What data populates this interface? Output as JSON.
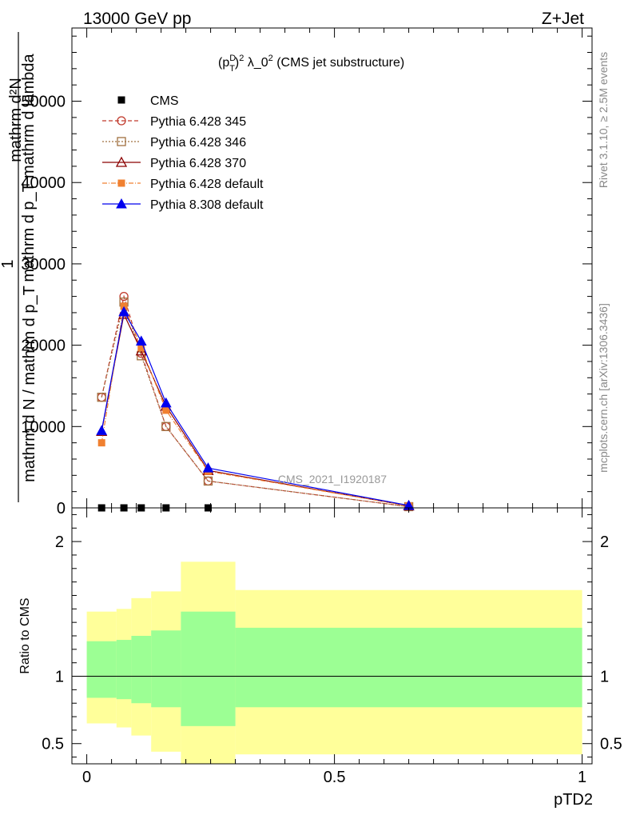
{
  "header": {
    "left": "13000 GeV pp",
    "right": "Z+Jet"
  },
  "side_labels": {
    "rivet": "Rivet 3.1.10, ≥ 2.5M events",
    "mcplots": "mcplots.cern.ch [arXiv:1306.3436]"
  },
  "analysis_id": "CMS_2021_I1920187",
  "ylabel_main": {
    "one": "1",
    "numerator": "mathrm d²N",
    "denominator": "mathrm d p_T mathrm d lambda",
    "lower": "mathrm d N / mathrm d p_T"
  },
  "chart_data": [
    {
      "type": "line",
      "title": "(p_T^D)^2 λ_0^2 (CMS jet substructure)",
      "xlim": [
        -0.03,
        1.02
      ],
      "ylim": [
        0,
        59000
      ],
      "y_ticks": [
        0,
        10000,
        20000,
        30000,
        40000,
        50000
      ],
      "y_tick_labels": [
        "0",
        "10000",
        "20000",
        "30000",
        "40000",
        "50000"
      ],
      "legend_position": "top-left",
      "x": [
        0.03,
        0.075,
        0.11,
        0.16,
        0.245,
        0.65
      ],
      "series": [
        {
          "name": "CMS",
          "color": "#000000",
          "marker": "square-filled",
          "dash": "none",
          "values": [
            0,
            0,
            0,
            0,
            0,
            null
          ]
        },
        {
          "name": "Pythia 6.428 345",
          "color": "#c0392b",
          "marker": "circle-open",
          "dash": "5,3",
          "values": [
            13600,
            26000,
            19000,
            10000,
            3300,
            150
          ]
        },
        {
          "name": "Pythia 6.428 346",
          "color": "#a07040",
          "marker": "square-open",
          "dash": "2,2",
          "values": [
            13600,
            25300,
            18700,
            10000,
            3300,
            150
          ]
        },
        {
          "name": "Pythia 6.428 370",
          "color": "#8b0000",
          "marker": "triangle-open",
          "dash": "none",
          "values": [
            9400,
            23800,
            19300,
            12500,
            4600,
            250
          ]
        },
        {
          "name": "Pythia 6.428 default",
          "color": "#f08030",
          "marker": "square-filled",
          "dash": "6,2,1,2",
          "values": [
            8000,
            24800,
            19700,
            12000,
            4500,
            250
          ]
        },
        {
          "name": "Pythia 8.308 default",
          "color": "#0000ee",
          "marker": "triangle-filled",
          "dash": "none",
          "values": [
            9500,
            24100,
            20500,
            12900,
            4900,
            300
          ]
        }
      ]
    },
    {
      "type": "area",
      "xlabel": "pTD2",
      "ylabel": "Ratio to CMS",
      "xlim": [
        -0.03,
        1.02
      ],
      "ylim": [
        0.35,
        2.25
      ],
      "x_ticks": [
        0,
        0.5,
        1
      ],
      "x_tick_labels": [
        "0",
        "0.5",
        "1"
      ],
      "y_ticks": [
        0.5,
        1,
        2
      ],
      "y_tick_labels": [
        "0.5",
        "1",
        "2"
      ],
      "reference_line": 1,
      "bins": [
        {
          "lo": 0.0,
          "hi": 0.06,
          "inner": [
            0.84,
            1.26
          ],
          "outer": [
            0.65,
            1.48
          ]
        },
        {
          "lo": 0.06,
          "hi": 0.09,
          "inner": [
            0.83,
            1.27
          ],
          "outer": [
            0.62,
            1.5
          ]
        },
        {
          "lo": 0.09,
          "hi": 0.13,
          "inner": [
            0.8,
            1.3
          ],
          "outer": [
            0.56,
            1.58
          ]
        },
        {
          "lo": 0.13,
          "hi": 0.19,
          "inner": [
            0.77,
            1.34
          ],
          "outer": [
            0.44,
            1.63
          ]
        },
        {
          "lo": 0.19,
          "hi": 0.3,
          "inner": [
            0.63,
            1.48
          ],
          "outer": [
            0.35,
            1.85
          ]
        },
        {
          "lo": 0.3,
          "hi": 1.0,
          "inner": [
            0.77,
            1.36
          ],
          "outer": [
            0.42,
            1.64
          ]
        }
      ],
      "band_colors": {
        "inner": "#9cff94",
        "outer": "#ffff9a"
      }
    }
  ]
}
